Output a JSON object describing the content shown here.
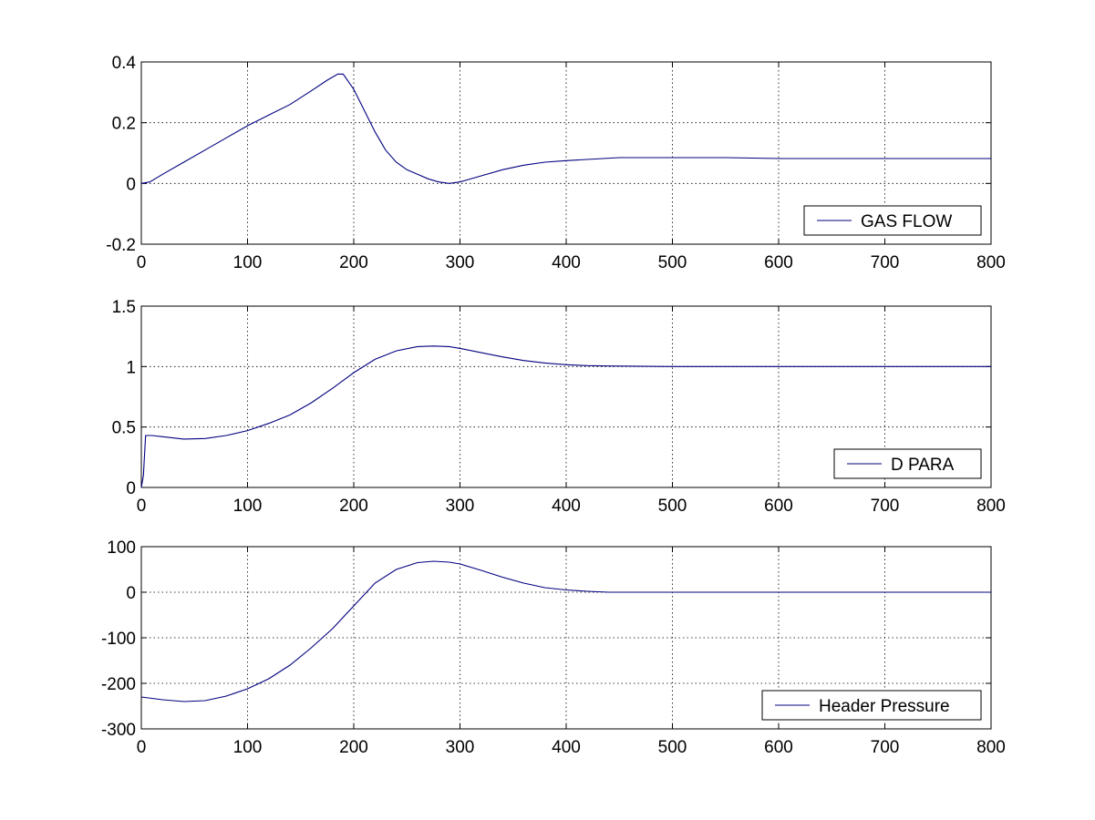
{
  "chart_data": [
    {
      "type": "line",
      "title": "",
      "xlabel": "",
      "ylabel": "",
      "xlim": [
        0,
        800
      ],
      "ylim": [
        -0.2,
        0.4
      ],
      "xticks": [
        "0",
        "100",
        "200",
        "300",
        "400",
        "500",
        "600",
        "700",
        "800"
      ],
      "yticks": [
        "-0.2",
        "0",
        "0.2",
        "0.4"
      ],
      "grid": true,
      "legend_position": "bottom-right",
      "series": [
        {
          "name": "GAS FLOW",
          "color": "#00007f",
          "x": [
            0,
            8,
            20,
            40,
            60,
            80,
            100,
            120,
            140,
            160,
            175,
            185,
            190,
            200,
            210,
            220,
            230,
            240,
            250,
            260,
            270,
            280,
            290,
            300,
            320,
            340,
            360,
            380,
            400,
            450,
            500,
            550,
            600,
            700,
            800
          ],
          "y": [
            0,
            0.005,
            0.03,
            0.07,
            0.11,
            0.15,
            0.19,
            0.225,
            0.26,
            0.305,
            0.34,
            0.36,
            0.36,
            0.31,
            0.24,
            0.17,
            0.11,
            0.07,
            0.045,
            0.03,
            0.015,
            0.005,
            0,
            0.005,
            0.025,
            0.045,
            0.06,
            0.07,
            0.075,
            0.085,
            0.085,
            0.085,
            0.082,
            0.082,
            0.082
          ]
        }
      ]
    },
    {
      "type": "line",
      "title": "",
      "xlabel": "",
      "ylabel": "",
      "xlim": [
        0,
        800
      ],
      "ylim": [
        0,
        1.5
      ],
      "xticks": [
        "0",
        "100",
        "200",
        "300",
        "400",
        "500",
        "600",
        "700",
        "800"
      ],
      "yticks": [
        "0",
        "0.5",
        "1",
        "1.5"
      ],
      "grid": true,
      "legend_position": "bottom-right",
      "series": [
        {
          "name": "D PARA",
          "color": "#00007f",
          "x": [
            0,
            2,
            4,
            10,
            20,
            40,
            60,
            80,
            100,
            120,
            140,
            160,
            180,
            200,
            220,
            240,
            260,
            275,
            290,
            300,
            320,
            340,
            360,
            380,
            400,
            420,
            440,
            500,
            600,
            700,
            800
          ],
          "y": [
            0,
            0.1,
            0.43,
            0.43,
            0.42,
            0.4,
            0.405,
            0.43,
            0.47,
            0.53,
            0.6,
            0.7,
            0.82,
            0.95,
            1.06,
            1.13,
            1.165,
            1.17,
            1.165,
            1.15,
            1.115,
            1.08,
            1.05,
            1.03,
            1.015,
            1.008,
            1.005,
            1.0,
            1.0,
            1.0,
            1.0
          ]
        }
      ]
    },
    {
      "type": "line",
      "title": "",
      "xlabel": "",
      "ylabel": "",
      "xlim": [
        0,
        800
      ],
      "ylim": [
        -300,
        100
      ],
      "xticks": [
        "0",
        "100",
        "200",
        "300",
        "400",
        "500",
        "600",
        "700",
        "800"
      ],
      "yticks": [
        "-300",
        "-200",
        "-100",
        "0",
        "100"
      ],
      "grid": true,
      "legend_position": "bottom-right",
      "series": [
        {
          "name": "Header Pressure",
          "color": "#00007f",
          "x": [
            0,
            20,
            40,
            60,
            80,
            100,
            120,
            140,
            160,
            180,
            200,
            220,
            240,
            260,
            275,
            290,
            300,
            320,
            340,
            360,
            380,
            400,
            420,
            440,
            460,
            500,
            600,
            700,
            800
          ],
          "y": [
            -230,
            -236,
            -240,
            -238,
            -228,
            -212,
            -190,
            -160,
            -122,
            -80,
            -30,
            20,
            50,
            65,
            68,
            66,
            62,
            48,
            33,
            20,
            10,
            5,
            2,
            0,
            0,
            0,
            0,
            0,
            0
          ]
        }
      ]
    }
  ]
}
